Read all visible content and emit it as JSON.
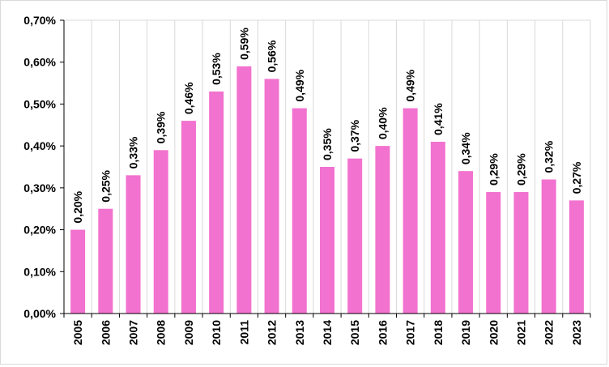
{
  "chart_data": {
    "type": "bar",
    "categories": [
      "2005",
      "2006",
      "2007",
      "2008",
      "2009",
      "2010",
      "2011",
      "2012",
      "2013",
      "2014",
      "2015",
      "2016",
      "2017",
      "2018",
      "2019",
      "2020",
      "2021",
      "2022",
      "2023"
    ],
    "values": [
      0.2,
      0.25,
      0.33,
      0.39,
      0.46,
      0.53,
      0.59,
      0.56,
      0.49,
      0.35,
      0.37,
      0.4,
      0.49,
      0.41,
      0.34,
      0.29,
      0.29,
      0.32,
      0.27
    ],
    "data_labels": [
      "0,20%",
      "0,25%",
      "0,33%",
      "0,39%",
      "0,46%",
      "0,53%",
      "0,59%",
      "0,56%",
      "0,49%",
      "0,35%",
      "0,37%",
      "0,40%",
      "0,49%",
      "0,41%",
      "0,34%",
      "0,29%",
      "0,29%",
      "0,32%",
      "0,27%"
    ],
    "y_ticks": [
      0,
      0.1,
      0.2,
      0.3,
      0.4,
      0.5,
      0.6,
      0.7
    ],
    "y_tick_labels": [
      "0,00%",
      "0,10%",
      "0,20%",
      "0,30%",
      "0,40%",
      "0,50%",
      "0,60%",
      "0,70%"
    ],
    "ylim": [
      0,
      0.7
    ],
    "title": "",
    "xlabel": "",
    "ylabel": "",
    "grid": true,
    "gridlines": "vertical",
    "legend": "none",
    "colors": {
      "bar": "#f272cf",
      "grid": "#d9d9d9",
      "axis": "#000000"
    }
  }
}
